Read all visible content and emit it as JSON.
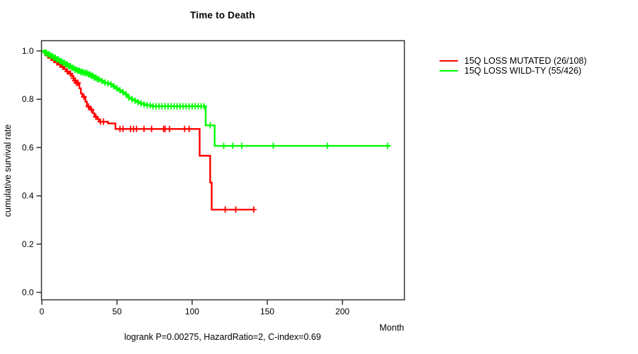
{
  "title": "Time to Death",
  "footer": "logrank P=0.00275, HazardRatio=2, C-index=0.69",
  "axes": {
    "xlabel": "Month",
    "ylabel": "cumulative survival rate"
  },
  "legend": {
    "items": [
      {
        "label": "15Q LOSS MUTATED (26/108)",
        "color": "#ff0000"
      },
      {
        "label": "15Q LOSS WILD-TY (55/426)",
        "color": "#00ff00"
      }
    ]
  },
  "chart_data": {
    "type": "line",
    "subtype": "kaplan-meier-step",
    "title": "Time to Death",
    "xlabel": "Month",
    "ylabel": "cumulative survival rate",
    "xlim": [
      0,
      241
    ],
    "ylim": [
      0.0,
      1.0
    ],
    "xticks": [
      {
        "label": "0",
        "value": 0
      },
      {
        "label": "50",
        "value": 50
      },
      {
        "label": "100",
        "value": 100
      },
      {
        "label": "150",
        "value": 150
      },
      {
        "label": "200",
        "value": 200
      }
    ],
    "yticks": [
      {
        "label": "0.0",
        "value": 0.0
      },
      {
        "label": "0.2",
        "value": 0.2
      },
      {
        "label": "0.4",
        "value": 0.4
      },
      {
        "label": "0.6",
        "value": 0.6
      },
      {
        "label": "0.8",
        "value": 0.8
      },
      {
        "label": "1.0",
        "value": 1.0
      }
    ],
    "grid": false,
    "legend_position": "right-outside",
    "frame_color": "#333333",
    "series": [
      {
        "name": "15Q LOSS MUTATED (26/108)",
        "color": "#ff0000",
        "end_month": 141,
        "steps": [
          [
            0,
            1.0
          ],
          [
            2,
            0.991
          ],
          [
            3,
            0.981
          ],
          [
            5,
            0.972
          ],
          [
            7,
            0.963
          ],
          [
            9,
            0.953
          ],
          [
            11,
            0.944
          ],
          [
            13,
            0.934
          ],
          [
            15,
            0.925
          ],
          [
            16,
            0.915
          ],
          [
            18,
            0.906
          ],
          [
            20,
            0.896
          ],
          [
            21,
            0.887
          ],
          [
            22,
            0.877
          ],
          [
            23,
            0.868
          ],
          [
            25,
            0.845
          ],
          [
            26,
            0.824
          ],
          [
            27,
            0.81
          ],
          [
            29,
            0.79
          ],
          [
            30,
            0.77
          ],
          [
            32,
            0.757
          ],
          [
            34,
            0.742
          ],
          [
            35,
            0.727
          ],
          [
            37,
            0.718
          ],
          [
            38,
            0.707
          ],
          [
            44,
            0.7
          ],
          [
            49,
            0.677
          ],
          [
            105,
            0.566
          ],
          [
            112,
            0.455
          ],
          [
            113,
            0.343
          ]
        ],
        "censor_months": [
          4,
          6,
          8,
          10,
          12,
          14,
          17,
          19,
          21,
          22,
          23,
          24,
          28,
          31,
          33,
          36,
          39,
          41,
          52,
          54,
          59,
          61,
          63,
          68,
          73,
          81,
          82,
          85,
          95,
          98,
          122,
          129,
          141
        ]
      },
      {
        "name": "15Q LOSS WILD-TY (55/426)",
        "color": "#00ff00",
        "end_month": 232,
        "steps": [
          [
            0,
            1.0
          ],
          [
            2,
            0.993
          ],
          [
            4,
            0.986
          ],
          [
            6,
            0.979
          ],
          [
            8,
            0.972
          ],
          [
            10,
            0.965
          ],
          [
            12,
            0.958
          ],
          [
            14,
            0.951
          ],
          [
            16,
            0.944
          ],
          [
            18,
            0.937
          ],
          [
            20,
            0.93
          ],
          [
            22,
            0.923
          ],
          [
            24,
            0.918
          ],
          [
            26,
            0.913
          ],
          [
            28,
            0.909
          ],
          [
            31,
            0.903
          ],
          [
            33,
            0.897
          ],
          [
            35,
            0.89
          ],
          [
            37,
            0.883
          ],
          [
            39,
            0.876
          ],
          [
            41,
            0.869
          ],
          [
            43,
            0.866
          ],
          [
            45,
            0.862
          ],
          [
            47,
            0.853
          ],
          [
            49,
            0.845
          ],
          [
            51,
            0.837
          ],
          [
            53,
            0.829
          ],
          [
            55,
            0.821
          ],
          [
            57,
            0.813
          ],
          [
            58,
            0.807
          ],
          [
            60,
            0.8
          ],
          [
            62,
            0.794
          ],
          [
            64,
            0.788
          ],
          [
            66,
            0.783
          ],
          [
            68,
            0.779
          ],
          [
            70,
            0.775
          ],
          [
            73,
            0.771
          ],
          [
            109,
            0.692
          ],
          [
            115,
            0.607
          ]
        ],
        "censor_months": [
          2,
          3,
          4,
          5,
          6,
          7,
          8,
          9,
          10,
          11,
          12,
          13,
          14,
          15,
          16,
          17,
          18,
          19,
          20,
          21,
          22,
          23,
          24,
          25,
          26,
          27,
          28,
          29,
          30,
          31,
          32,
          33,
          34,
          35,
          36,
          37,
          38,
          40,
          42,
          44,
          46,
          48,
          50,
          52,
          54,
          56,
          58,
          60,
          62,
          64,
          66,
          68,
          70,
          72,
          74,
          76,
          78,
          80,
          82,
          84,
          86,
          88,
          90,
          92,
          94,
          96,
          98,
          100,
          102,
          104,
          106,
          108,
          112,
          121,
          127,
          133,
          154,
          190,
          230
        ]
      }
    ]
  }
}
